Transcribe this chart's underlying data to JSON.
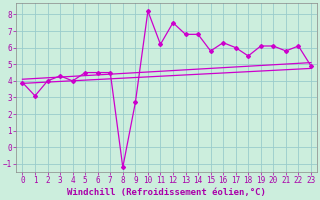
{
  "title": "",
  "xlabel": "Windchill (Refroidissement éolien,°C)",
  "ylabel": "",
  "bg_color": "#cceedd",
  "line_color": "#cc00cc",
  "grid_color": "#99cccc",
  "xlim": [
    -0.5,
    23.5
  ],
  "ylim": [
    -1.5,
    8.7
  ],
  "yticks": [
    -1,
    0,
    1,
    2,
    3,
    4,
    5,
    6,
    7,
    8
  ],
  "xticks": [
    0,
    1,
    2,
    3,
    4,
    5,
    6,
    7,
    8,
    9,
    10,
    11,
    12,
    13,
    14,
    15,
    16,
    17,
    18,
    19,
    20,
    21,
    22,
    23
  ],
  "series1_x": [
    0,
    1,
    2,
    3,
    4,
    5,
    6,
    7,
    8,
    9,
    10,
    11,
    12,
    13,
    14,
    15,
    16,
    17,
    18,
    19,
    20,
    21,
    22,
    23
  ],
  "series1_y": [
    3.9,
    3.1,
    4.0,
    4.3,
    4.0,
    4.5,
    4.5,
    4.5,
    -1.2,
    2.7,
    8.2,
    6.2,
    7.5,
    6.8,
    6.8,
    5.8,
    6.3,
    6.0,
    5.5,
    6.1,
    6.1,
    5.8,
    6.1,
    4.9
  ],
  "trend1_x": [
    0,
    23
  ],
  "trend1_y": [
    4.1,
    5.1
  ],
  "trend2_x": [
    0,
    23
  ],
  "trend2_y": [
    3.85,
    4.75
  ],
  "marker": "D",
  "markersize": 2.0,
  "linewidth": 0.9,
  "font_color": "#aa00aa",
  "tick_fontsize": 5.5,
  "label_fontsize": 6.5
}
